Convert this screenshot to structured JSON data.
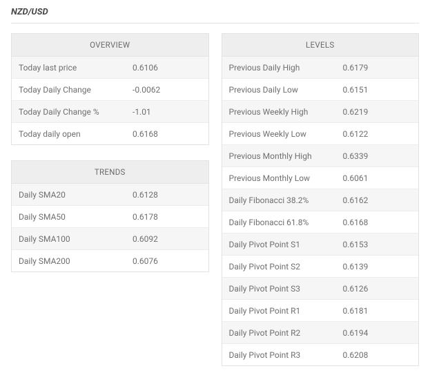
{
  "title": "NZD/USD",
  "layout": {
    "page_bg": "#ffffff",
    "border_color": "#e3e3e3",
    "header_bg": "#eeeeef",
    "row_alt_bg": "#f6f6f7",
    "text_color": "#6f6f70",
    "title_color": "#49494a",
    "font_size_title": 13,
    "font_size_header": 11.5,
    "font_size_cell": 12
  },
  "tables": {
    "overview": {
      "title": "OVERVIEW",
      "rows": [
        {
          "label": "Today last price",
          "value": "0.6106"
        },
        {
          "label": "Today Daily Change",
          "value": "-0.0062"
        },
        {
          "label": "Today Daily Change %",
          "value": "-1.01"
        },
        {
          "label": "Today daily open",
          "value": "0.6168"
        }
      ]
    },
    "trends": {
      "title": "TRENDS",
      "rows": [
        {
          "label": "Daily SMA20",
          "value": "0.6128"
        },
        {
          "label": "Daily SMA50",
          "value": "0.6178"
        },
        {
          "label": "Daily SMA100",
          "value": "0.6092"
        },
        {
          "label": "Daily SMA200",
          "value": "0.6076"
        }
      ]
    },
    "levels": {
      "title": "LEVELS",
      "rows": [
        {
          "label": "Previous Daily High",
          "value": "0.6179"
        },
        {
          "label": "Previous Daily Low",
          "value": "0.6151"
        },
        {
          "label": "Previous Weekly High",
          "value": "0.6219"
        },
        {
          "label": "Previous Weekly Low",
          "value": "0.6122"
        },
        {
          "label": "Previous Monthly High",
          "value": "0.6339"
        },
        {
          "label": "Previous Monthly Low",
          "value": "0.6061"
        },
        {
          "label": "Daily Fibonacci 38.2%",
          "value": "0.6162"
        },
        {
          "label": "Daily Fibonacci 61.8%",
          "value": "0.6168"
        },
        {
          "label": "Daily Pivot Point S1",
          "value": "0.6153"
        },
        {
          "label": "Daily Pivot Point S2",
          "value": "0.6139"
        },
        {
          "label": "Daily Pivot Point S3",
          "value": "0.6126"
        },
        {
          "label": "Daily Pivot Point R1",
          "value": "0.6181"
        },
        {
          "label": "Daily Pivot Point R2",
          "value": "0.6194"
        },
        {
          "label": "Daily Pivot Point R3",
          "value": "0.6208"
        }
      ]
    }
  }
}
